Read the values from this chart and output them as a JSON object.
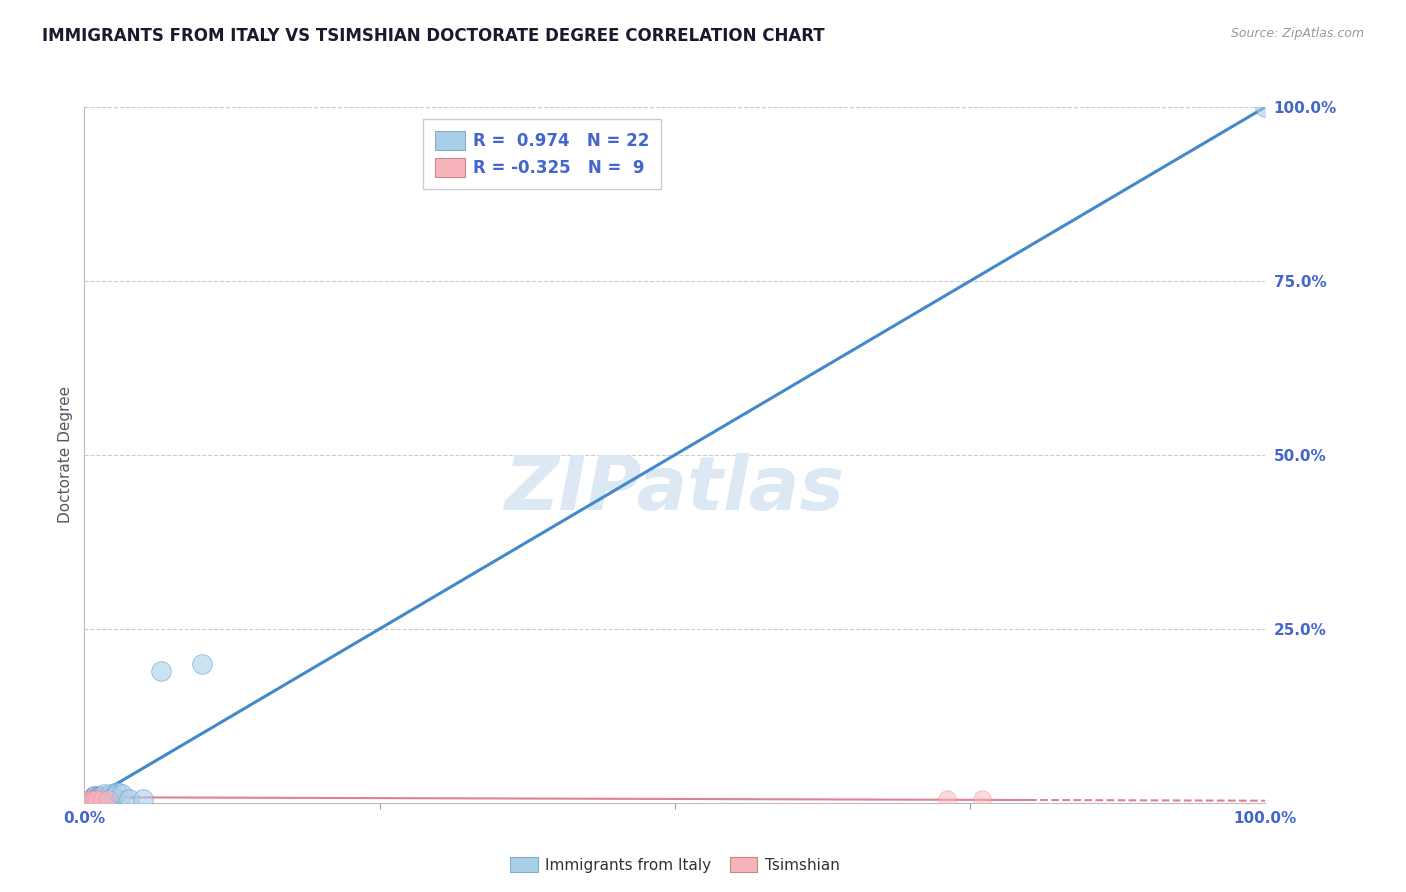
{
  "title": "IMMIGRANTS FROM ITALY VS TSIMSHIAN DOCTORATE DEGREE CORRELATION CHART",
  "source_text": "Source: ZipAtlas.com",
  "ylabel": "Doctorate Degree",
  "xlim": [
    0,
    1.0
  ],
  "ylim": [
    0,
    1.0
  ],
  "blue_r": 0.974,
  "blue_n": 22,
  "pink_r": -0.325,
  "pink_n": 9,
  "blue_color": "#a8cfe8",
  "pink_color": "#f8b4bc",
  "trend_blue_color": "#4488cc",
  "trend_pink_color": "#e08090",
  "background_color": "#ffffff",
  "grid_color": "#cccccc",
  "title_color": "#1a1a2e",
  "axis_label_color": "#555566",
  "tick_label_color": "#4466cc",
  "watermark_color": "#dde8f5",
  "legend_border_color": "#cccccc",
  "legend_bg_color": "#ffffff",
  "blue_scatter_x": [
    0.003,
    0.005,
    0.006,
    0.007,
    0.008,
    0.009,
    0.01,
    0.011,
    0.012,
    0.013,
    0.015,
    0.017,
    0.02,
    0.022,
    0.025,
    0.028,
    0.032,
    0.038,
    0.05,
    0.065,
    0.1,
    1.0
  ],
  "blue_scatter_y": [
    0.003,
    0.003,
    0.003,
    0.008,
    0.01,
    0.01,
    0.005,
    0.008,
    0.008,
    0.01,
    0.008,
    0.012,
    0.005,
    0.012,
    0.008,
    0.015,
    0.012,
    0.005,
    0.005,
    0.19,
    0.2,
    1.0
  ],
  "pink_scatter_x": [
    0.003,
    0.005,
    0.007,
    0.009,
    0.011,
    0.015,
    0.02,
    0.73,
    0.76
  ],
  "pink_scatter_y": [
    0.005,
    0.005,
    0.005,
    0.005,
    0.005,
    0.005,
    0.005,
    0.005,
    0.005
  ],
  "blue_trend_x0": 0.0,
  "blue_trend_x1": 1.0,
  "blue_trend_y0": 0.0,
  "blue_trend_y1": 1.0,
  "pink_trend_solid_x0": 0.0,
  "pink_trend_solid_x1": 0.8,
  "pink_trend_solid_y0": 0.008,
  "pink_trend_solid_y1": 0.004,
  "pink_trend_dash_x0": 0.8,
  "pink_trend_dash_x1": 1.0,
  "pink_trend_dash_y0": 0.004,
  "pink_trend_dash_y1": 0.003,
  "xtick_minor": [
    0.25,
    0.5,
    0.75
  ],
  "ytick_gridlines": [
    0.25,
    0.5,
    0.75,
    1.0
  ]
}
